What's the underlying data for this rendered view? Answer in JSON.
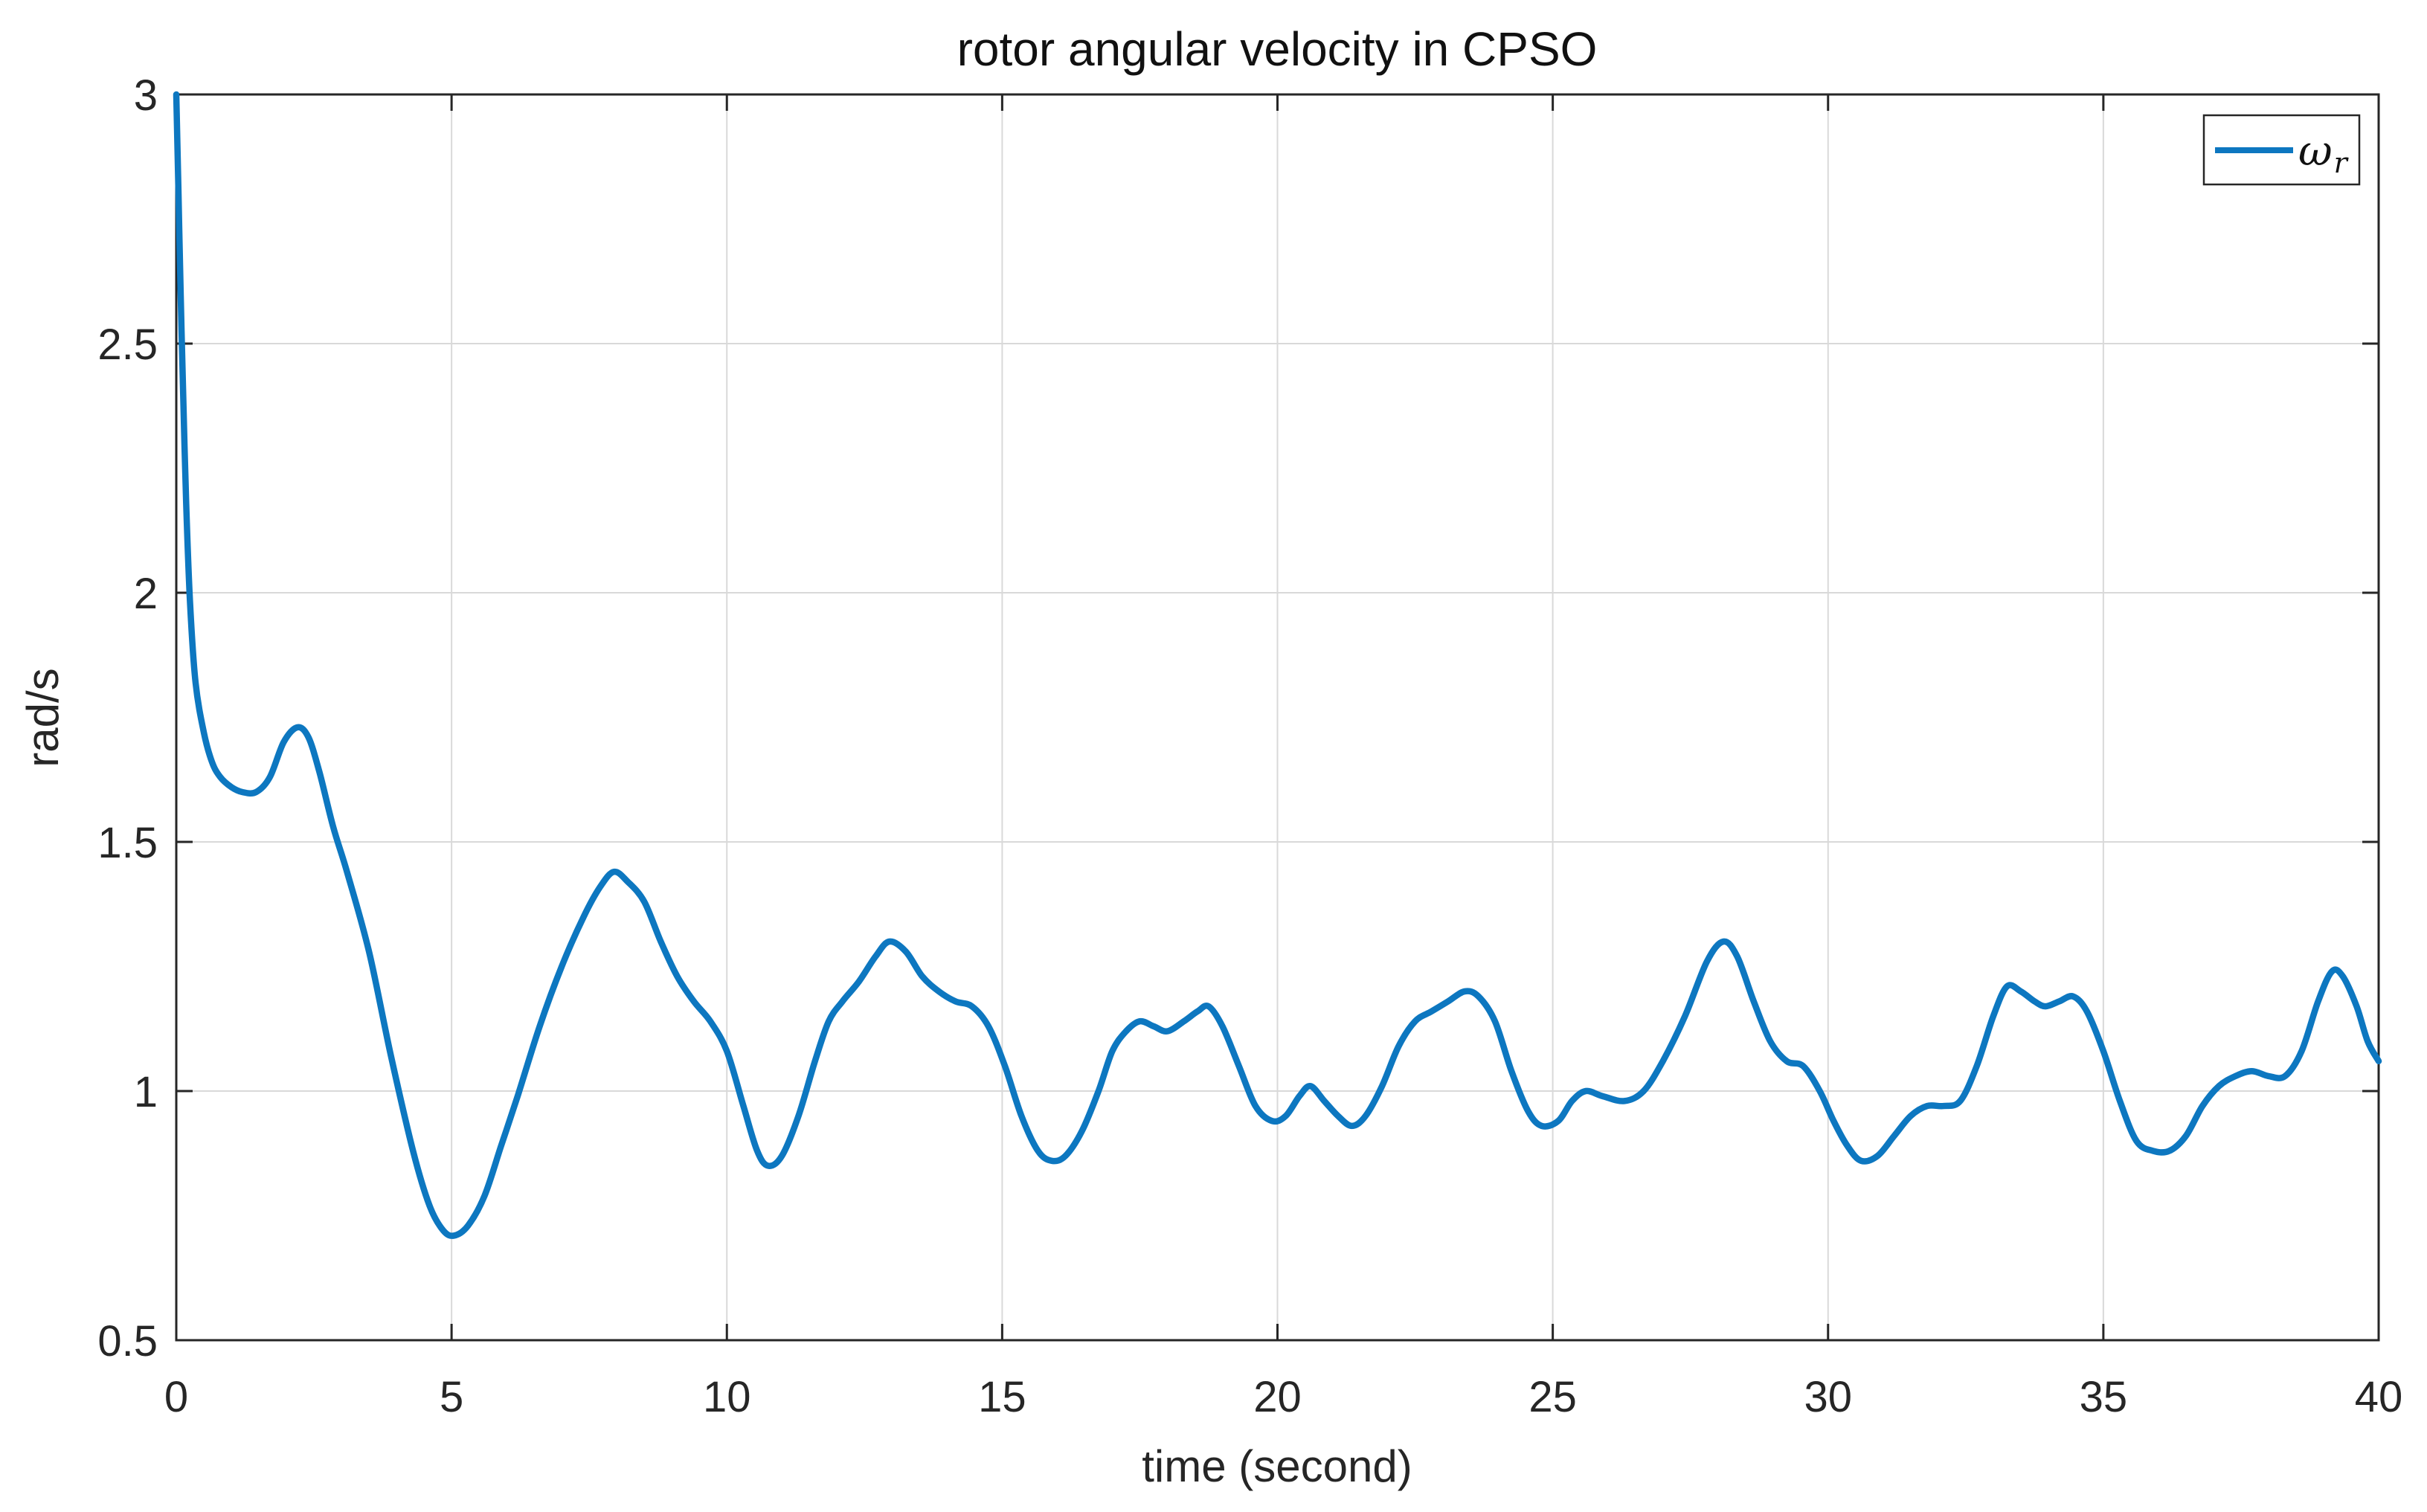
{
  "figure": {
    "title": "rotor angular velocity in CPSO",
    "xlabel": "time (second)",
    "ylabel": "rad/s",
    "legend": {
      "label_base": "ω",
      "label_sub": "r"
    },
    "colors": {
      "line": "#0d77c0",
      "grid": "#d9d9d9",
      "axis": "#262626",
      "text": "#262626",
      "background": "#ffffff"
    }
  },
  "chart_data": {
    "type": "line",
    "title": "rotor angular velocity in CPSO",
    "xlabel": "time (second)",
    "ylabel": "rad/s",
    "xlim": [
      0,
      40
    ],
    "ylim": [
      0.5,
      3
    ],
    "xticks": [
      0,
      5,
      10,
      15,
      20,
      25,
      30,
      35,
      40
    ],
    "xtick_labels": [
      "0",
      "5",
      "10",
      "15",
      "20",
      "25",
      "30",
      "35",
      "40"
    ],
    "yticks": [
      0.5,
      1,
      1.5,
      2,
      2.5,
      3
    ],
    "ytick_labels": [
      "0.5",
      "1",
      "1.5",
      "2",
      "2.5",
      "3"
    ],
    "grid": true,
    "legend_position": "top-right",
    "series": [
      {
        "name": "ω_r",
        "color": "#0d77c0",
        "x": [
          0,
          0.04,
          0.08,
          0.12,
          0.18,
          0.25,
          0.35,
          0.5,
          0.65,
          0.8,
          1.0,
          1.2,
          1.45,
          1.7,
          1.95,
          2.2,
          2.4,
          2.6,
          2.85,
          3.1,
          3.5,
          3.9,
          4.3,
          4.6,
          4.85,
          5.05,
          5.3,
          5.6,
          5.9,
          6.2,
          6.6,
          7.0,
          7.4,
          7.7,
          7.95,
          8.2,
          8.5,
          8.8,
          9.1,
          9.4,
          9.7,
          10.0,
          10.3,
          10.55,
          10.75,
          11.0,
          11.3,
          11.6,
          11.85,
          12.1,
          12.4,
          12.7,
          12.95,
          13.25,
          13.55,
          13.85,
          14.15,
          14.45,
          14.75,
          15.05,
          15.35,
          15.65,
          15.9,
          16.15,
          16.45,
          16.75,
          17.0,
          17.25,
          17.5,
          17.75,
          18.0,
          18.3,
          18.55,
          18.75,
          19.0,
          19.3,
          19.6,
          19.9,
          20.15,
          20.4,
          20.6,
          20.85,
          21.1,
          21.35,
          21.6,
          21.9,
          22.2,
          22.5,
          22.8,
          23.1,
          23.4,
          23.65,
          23.95,
          24.25,
          24.55,
          24.8,
          25.1,
          25.35,
          25.6,
          25.9,
          26.3,
          26.65,
          27.0,
          27.4,
          27.8,
          28.1,
          28.35,
          28.65,
          28.95,
          29.25,
          29.55,
          29.85,
          30.1,
          30.35,
          30.6,
          30.9,
          31.2,
          31.5,
          31.8,
          32.1,
          32.4,
          32.7,
          33.0,
          33.25,
          33.5,
          33.75,
          33.95,
          34.2,
          34.45,
          34.7,
          35.0,
          35.3,
          35.6,
          35.9,
          36.2,
          36.5,
          36.8,
          37.1,
          37.4,
          37.7,
          38.0,
          38.3,
          38.6,
          38.9,
          39.15,
          39.35,
          39.6,
          39.8,
          40.0
        ],
        "y": [
          3.0,
          2.8,
          2.6,
          2.42,
          2.18,
          1.98,
          1.82,
          1.72,
          1.66,
          1.63,
          1.61,
          1.6,
          1.6,
          1.63,
          1.7,
          1.73,
          1.71,
          1.64,
          1.53,
          1.44,
          1.28,
          1.07,
          0.88,
          0.77,
          0.72,
          0.71,
          0.73,
          0.79,
          0.89,
          0.99,
          1.13,
          1.25,
          1.35,
          1.41,
          1.44,
          1.42,
          1.38,
          1.3,
          1.23,
          1.18,
          1.14,
          1.08,
          0.97,
          0.88,
          0.85,
          0.87,
          0.95,
          1.06,
          1.14,
          1.18,
          1.22,
          1.27,
          1.3,
          1.28,
          1.23,
          1.2,
          1.18,
          1.17,
          1.13,
          1.05,
          0.95,
          0.88,
          0.86,
          0.87,
          0.92,
          1.0,
          1.08,
          1.12,
          1.14,
          1.13,
          1.12,
          1.14,
          1.16,
          1.17,
          1.13,
          1.05,
          0.97,
          0.94,
          0.95,
          0.99,
          1.01,
          0.98,
          0.95,
          0.93,
          0.95,
          1.01,
          1.09,
          1.14,
          1.16,
          1.18,
          1.2,
          1.19,
          1.14,
          1.04,
          0.96,
          0.93,
          0.94,
          0.98,
          1.0,
          0.99,
          0.98,
          1.0,
          1.06,
          1.15,
          1.26,
          1.3,
          1.27,
          1.18,
          1.1,
          1.06,
          1.05,
          1.0,
          0.94,
          0.89,
          0.86,
          0.87,
          0.91,
          0.95,
          0.97,
          0.97,
          0.98,
          1.05,
          1.15,
          1.21,
          1.2,
          1.18,
          1.17,
          1.18,
          1.19,
          1.16,
          1.08,
          0.98,
          0.9,
          0.88,
          0.88,
          0.91,
          0.97,
          1.01,
          1.03,
          1.04,
          1.03,
          1.03,
          1.08,
          1.18,
          1.24,
          1.23,
          1.17,
          1.1,
          1.06
        ]
      }
    ]
  }
}
